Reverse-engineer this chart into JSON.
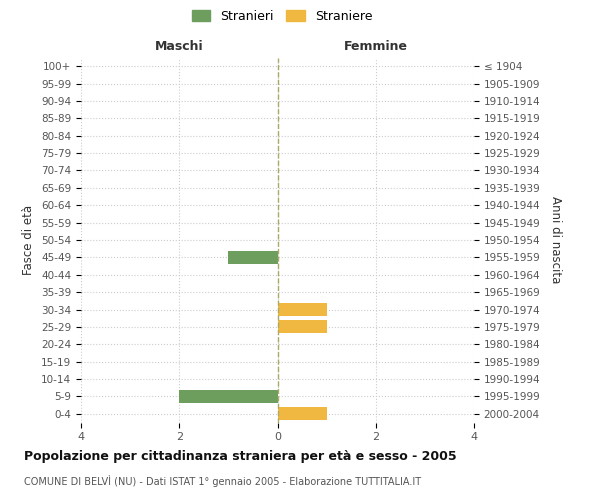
{
  "age_groups": [
    "100+",
    "95-99",
    "90-94",
    "85-89",
    "80-84",
    "75-79",
    "70-74",
    "65-69",
    "60-64",
    "55-59",
    "50-54",
    "45-49",
    "40-44",
    "35-39",
    "30-34",
    "25-29",
    "20-24",
    "15-19",
    "10-14",
    "5-9",
    "0-4"
  ],
  "birth_years": [
    "≤ 1904",
    "1905-1909",
    "1910-1914",
    "1915-1919",
    "1920-1924",
    "1925-1929",
    "1930-1934",
    "1935-1939",
    "1940-1944",
    "1945-1949",
    "1950-1954",
    "1955-1959",
    "1960-1964",
    "1965-1969",
    "1970-1974",
    "1975-1979",
    "1980-1984",
    "1985-1989",
    "1990-1994",
    "1995-1999",
    "2000-2004"
  ],
  "males": [
    0,
    0,
    0,
    0,
    0,
    0,
    0,
    0,
    0,
    0,
    0,
    1,
    0,
    0,
    0,
    0,
    0,
    0,
    0,
    2,
    0
  ],
  "females": [
    0,
    0,
    0,
    0,
    0,
    0,
    0,
    0,
    0,
    0,
    0,
    0,
    0,
    0,
    1,
    1,
    0,
    0,
    0,
    0,
    1
  ],
  "male_color": "#6e9e5e",
  "female_color": "#f0b840",
  "male_label": "Stranieri",
  "female_label": "Straniere",
  "xlim": 4,
  "title": "Popolazione per cittadinanza straniera per età e sesso - 2005",
  "subtitle": "COMUNE DI BELVÌ (NU) - Dati ISTAT 1° gennaio 2005 - Elaborazione TUTTITALIA.IT",
  "ylabel_left": "Fasce di età",
  "ylabel_right": "Anni di nascita",
  "header_left": "Maschi",
  "header_right": "Femmine",
  "background_color": "#ffffff",
  "grid_color": "#cccccc",
  "bar_height": 0.75
}
